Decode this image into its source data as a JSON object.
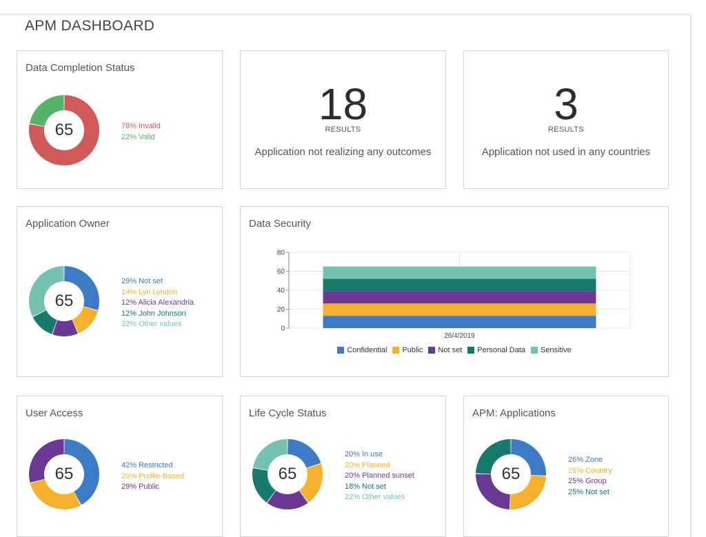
{
  "page": {
    "title": "APM DASHBOARD"
  },
  "colors": {
    "invalid": "#d05a58",
    "valid": "#56b36a",
    "blue": "#3d7bc6",
    "orange": "#f7b12d",
    "purple": "#6a3994",
    "teal": "#177a6a",
    "aqua": "#73c2b4"
  },
  "data_completion": {
    "title": "Data Completion Status",
    "center": "65",
    "legend": [
      {
        "label": "78% Invalid",
        "value": 78,
        "color": "#d05a58"
      },
      {
        "label": "22% Valid",
        "value": 22,
        "color": "#56b36a"
      }
    ]
  },
  "kpi_outcomes": {
    "number": "18",
    "sub": "RESULTS",
    "desc": "Application not realizing any outcomes"
  },
  "kpi_countries": {
    "number": "3",
    "sub": "RESULTS",
    "desc": "Application not used in any countries"
  },
  "app_owner": {
    "title": "Application Owner",
    "center": "65",
    "legend": [
      {
        "label": "29% Not set",
        "value": 29,
        "color": "#3d7bc6"
      },
      {
        "label": "14% Lyn Lyndon",
        "value": 14,
        "color": "#f7b12d"
      },
      {
        "label": "12% Alicia Alexandria",
        "value": 12,
        "color": "#6a3994"
      },
      {
        "label": "12% John Johnson",
        "value": 12,
        "color": "#177a6a"
      },
      {
        "label": "32% Other values",
        "value": 32,
        "color": "#73c2b4"
      }
    ]
  },
  "data_security": {
    "title": "Data Security",
    "chart_data": {
      "type": "bar",
      "stacked": true,
      "categories": [
        "26/4/2019"
      ],
      "ylim": [
        0,
        80
      ],
      "yticks": [
        0,
        20,
        40,
        60,
        80
      ],
      "series": [
        {
          "name": "Confidential",
          "values": [
            13
          ],
          "color": "#3d7bc6"
        },
        {
          "name": "Public",
          "values": [
            13
          ],
          "color": "#f7b12d"
        },
        {
          "name": "Not set",
          "values": [
            13
          ],
          "color": "#6a3994"
        },
        {
          "name": "Personal Data",
          "values": [
            13
          ],
          "color": "#177a6a"
        },
        {
          "name": "Sensitive",
          "values": [
            13
          ],
          "color": "#73c2b4"
        }
      ],
      "legend_position": "bottom",
      "grid": true
    }
  },
  "user_access": {
    "title": "User Access",
    "center": "65",
    "legend": [
      {
        "label": "42% Restricted",
        "value": 42,
        "color": "#3d7bc6"
      },
      {
        "label": "29% Profile-Based",
        "value": 29,
        "color": "#f7b12d"
      },
      {
        "label": "29% Public",
        "value": 29,
        "color": "#6a3994"
      }
    ]
  },
  "life_cycle": {
    "title": "Life Cycle Status",
    "center": "65",
    "legend": [
      {
        "label": "20% In use",
        "value": 20,
        "color": "#3d7bc6"
      },
      {
        "label": "20% Planned",
        "value": 20,
        "color": "#f7b12d"
      },
      {
        "label": "20% Planned sunset",
        "value": 20,
        "color": "#6a3994"
      },
      {
        "label": "18% Not set",
        "value": 18,
        "color": "#177a6a"
      },
      {
        "label": "22% Other values",
        "value": 22,
        "color": "#73c2b4"
      }
    ]
  },
  "apm_applications": {
    "title": "APM: Applications",
    "center": "65",
    "legend": [
      {
        "label": "26% Zone",
        "value": 26,
        "color": "#3d7bc6"
      },
      {
        "label": "25% Country",
        "value": 25,
        "color": "#f7b12d"
      },
      {
        "label": "25% Group",
        "value": 25,
        "color": "#6a3994"
      },
      {
        "label": "25% Not set",
        "value": 25,
        "color": "#177a6a"
      }
    ]
  }
}
